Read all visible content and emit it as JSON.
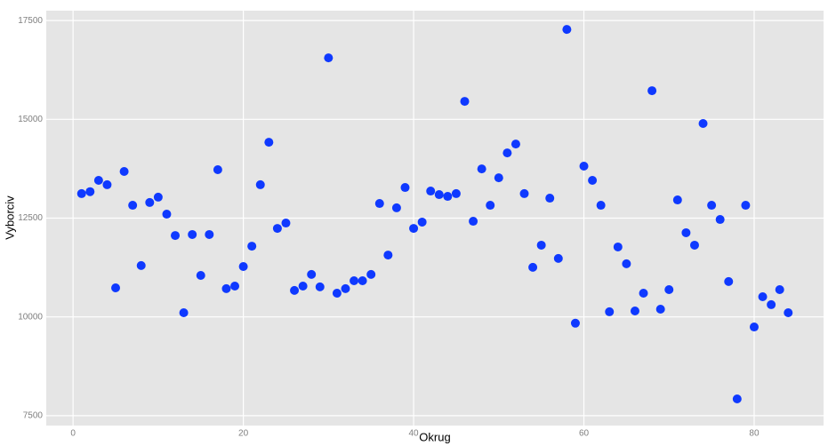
{
  "chart_data": {
    "type": "scatter",
    "x_label": "Okrug",
    "y_label": "Vyborciv",
    "x": [
      1,
      2,
      3,
      4,
      5,
      6,
      7,
      8,
      9,
      10,
      11,
      12,
      13,
      14,
      15,
      16,
      17,
      18,
      19,
      20,
      21,
      22,
      23,
      24,
      25,
      26,
      27,
      28,
      29,
      30,
      31,
      32,
      33,
      34,
      35,
      36,
      37,
      38,
      39,
      40,
      41,
      42,
      43,
      44,
      45,
      46,
      47,
      48,
      49,
      50,
      51,
      52,
      53,
      54,
      55,
      56,
      57,
      58,
      59,
      60,
      61,
      62,
      63,
      64,
      65,
      66,
      67,
      68,
      69,
      70,
      71,
      72,
      73,
      74,
      75,
      76,
      77,
      78,
      79,
      80,
      81,
      82,
      83,
      84
    ],
    "values": [
      13120,
      13170,
      13455,
      13345,
      10735,
      13680,
      12825,
      11300,
      12895,
      13030,
      12600,
      12060,
      10105,
      12085,
      11050,
      12085,
      13725,
      10715,
      10780,
      11275,
      11790,
      13345,
      14420,
      12240,
      12375,
      10670,
      10780,
      11075,
      10760,
      16555,
      10600,
      10715,
      10915,
      10915,
      11075,
      12870,
      11565,
      12760,
      13275,
      12240,
      12400,
      13185,
      13095,
      13050,
      13120,
      15455,
      12420,
      13745,
      12825,
      13520,
      14150,
      14375,
      13120,
      11255,
      11815,
      13005,
      11480,
      17275,
      9840,
      13815,
      13455,
      12825,
      10130,
      11770,
      11345,
      10150,
      10600,
      15725,
      10195,
      10690,
      12960,
      12130,
      11815,
      14895,
      12825,
      12465,
      10895,
      7925,
      12825,
      9745,
      10510,
      10310,
      10690,
      10105
    ],
    "color": "#0f39ff",
    "xlim": [
      -3.15,
      88.15
    ],
    "xticks": [
      0,
      20,
      40,
      60,
      80
    ],
    "ylim": [
      7250,
      17750
    ],
    "yticks": [
      7500,
      10000,
      12500,
      15000,
      17500
    ],
    "grid": true
  }
}
